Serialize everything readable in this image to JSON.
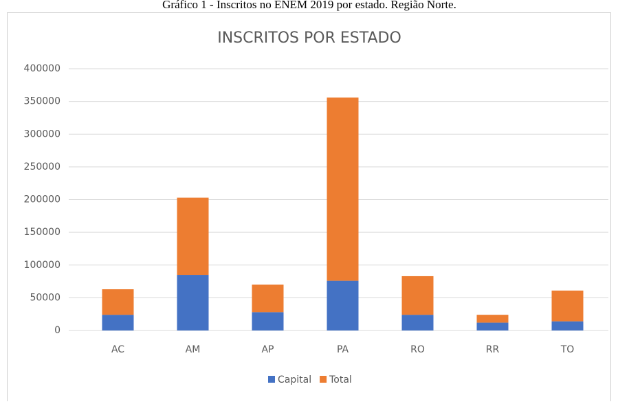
{
  "caption": "Gráfico 1 - Inscritos no ENEM 2019 por estado. Região Norte.",
  "chart_data": {
    "type": "stacked_bar",
    "title": "INSCRITOS POR ESTADO",
    "categories": [
      "AC",
      "AM",
      "AP",
      "PA",
      "RO",
      "RR",
      "TO"
    ],
    "series": [
      {
        "name": "Capital",
        "color": "#4472c4",
        "values": [
          24000,
          85000,
          28000,
          76000,
          24000,
          12000,
          14000
        ]
      },
      {
        "name": "Total",
        "color": "#ed7d31",
        "values": [
          39000,
          118000,
          42000,
          280000,
          59000,
          12000,
          47000
        ]
      }
    ],
    "ylim": [
      0,
      400000
    ],
    "yticks": [
      0,
      50000,
      100000,
      150000,
      200000,
      250000,
      300000,
      350000,
      400000
    ],
    "grid": true,
    "legend": "bottom"
  }
}
